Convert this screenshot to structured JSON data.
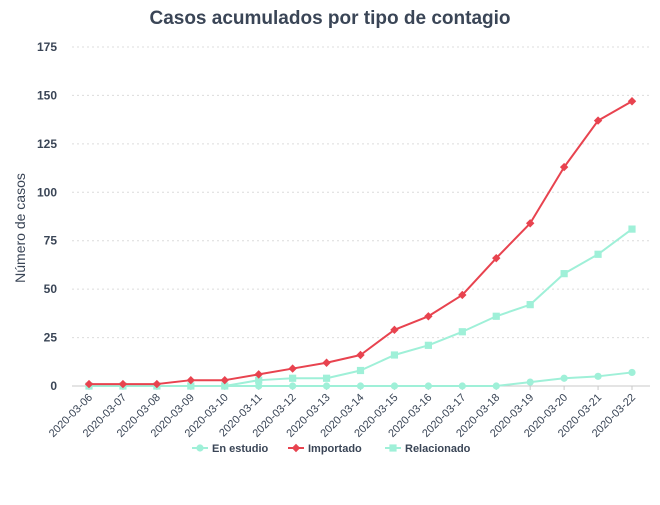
{
  "chart_data": {
    "type": "line",
    "title": "Casos acumulados por tipo de contagio",
    "xlabel": "",
    "ylabel": "Número de casos",
    "ylim": [
      0,
      175
    ],
    "yticks": [
      0,
      25,
      50,
      75,
      100,
      125,
      150,
      175
    ],
    "grid": true,
    "legend_position": "bottom",
    "categories": [
      "2020-03-06",
      "2020-03-07",
      "2020-03-08",
      "2020-03-09",
      "2020-03-10",
      "2020-03-11",
      "2020-03-12",
      "2020-03-13",
      "2020-03-14",
      "2020-03-15",
      "2020-03-16",
      "2020-03-17",
      "2020-03-18",
      "2020-03-19",
      "2020-03-20",
      "2020-03-21",
      "2020-03-22"
    ],
    "series": [
      {
        "name": "En estudio",
        "color": "#9ff0d8",
        "marker": "circle",
        "values": [
          0,
          0,
          0,
          0,
          0,
          0,
          0,
          0,
          0,
          0,
          0,
          0,
          0,
          2,
          4,
          5,
          7
        ]
      },
      {
        "name": "Importado",
        "color": "#e8434f",
        "marker": "diamond",
        "values": [
          1,
          1,
          1,
          3,
          3,
          6,
          9,
          12,
          16,
          29,
          36,
          47,
          66,
          84,
          113,
          137,
          147
        ]
      },
      {
        "name": "Relacionado",
        "color": "#9ff0d8",
        "marker": "square",
        "values": [
          0,
          0,
          0,
          0,
          0,
          3,
          4,
          4,
          8,
          16,
          21,
          28,
          36,
          42,
          58,
          68,
          81
        ]
      }
    ]
  }
}
